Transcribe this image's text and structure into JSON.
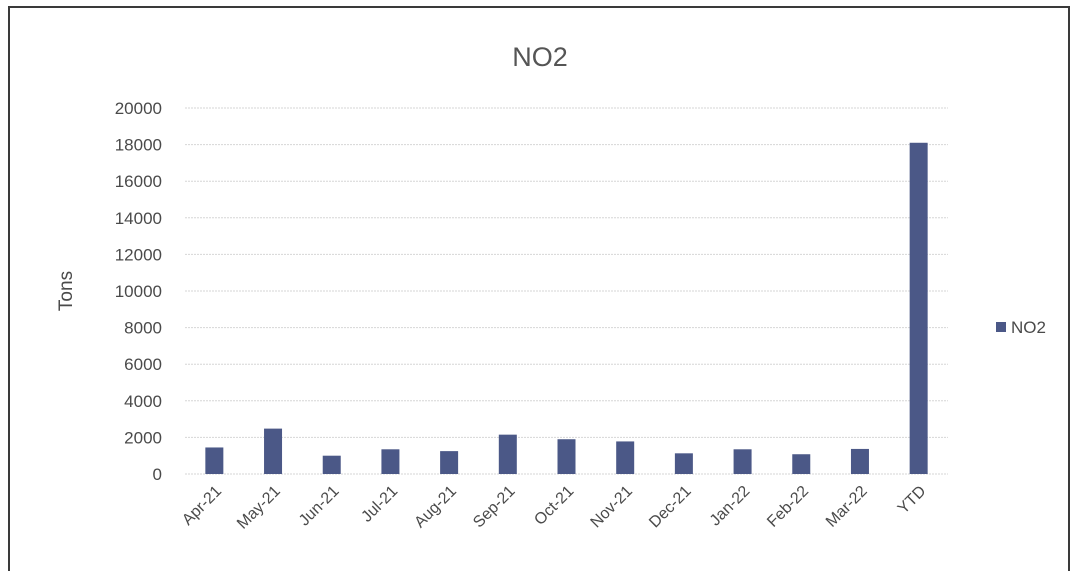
{
  "chart_data": {
    "type": "bar",
    "title": "NO2",
    "xlabel": "",
    "ylabel": "Tons",
    "categories": [
      "Apr-21",
      "May-21",
      "Jun-21",
      "Jul-21",
      "Aug-21",
      "Sep-21",
      "Oct-21",
      "Nov-21",
      "Dec-21",
      "Jan-22",
      "Feb-22",
      "Mar-22",
      "YTD"
    ],
    "series": [
      {
        "name": "NO2",
        "values": [
          1450,
          2480,
          1000,
          1350,
          1250,
          2150,
          1900,
          1780,
          1130,
          1350,
          1080,
          1370,
          18100
        ],
        "color": "#4b5887"
      }
    ],
    "ylim": [
      0,
      20000
    ],
    "yticks": [
      "0",
      "2000",
      "4000",
      "6000",
      "8000",
      "10000",
      "12000",
      "14000",
      "16000",
      "18000",
      "20000"
    ],
    "grid": true,
    "legend": "right"
  }
}
